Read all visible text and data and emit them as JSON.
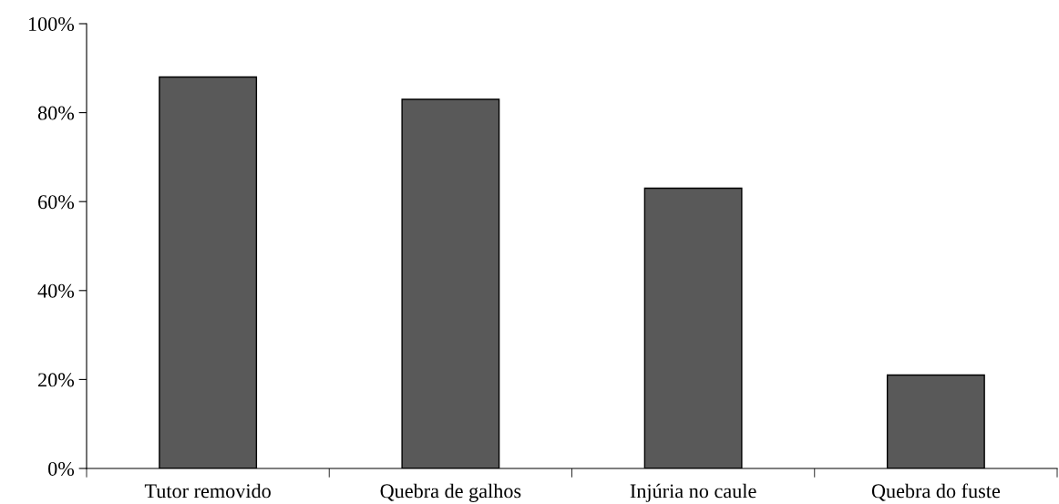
{
  "chart_data": {
    "type": "bar",
    "categories": [
      "Tutor removido",
      "Quebra de galhos",
      "Injúria no caule",
      "Quebra do fuste"
    ],
    "values": [
      88,
      83,
      63,
      21
    ],
    "color": "#595959",
    "ylim": [
      0,
      100
    ],
    "yticks": [
      {
        "value": 0,
        "label": "0%"
      },
      {
        "value": 20,
        "label": "20%"
      },
      {
        "value": 40,
        "label": "40%"
      },
      {
        "value": 60,
        "label": "60%"
      },
      {
        "value": 80,
        "label": "80%"
      },
      {
        "value": 100,
        "label": "100%"
      }
    ],
    "grid": false,
    "legend": false
  }
}
